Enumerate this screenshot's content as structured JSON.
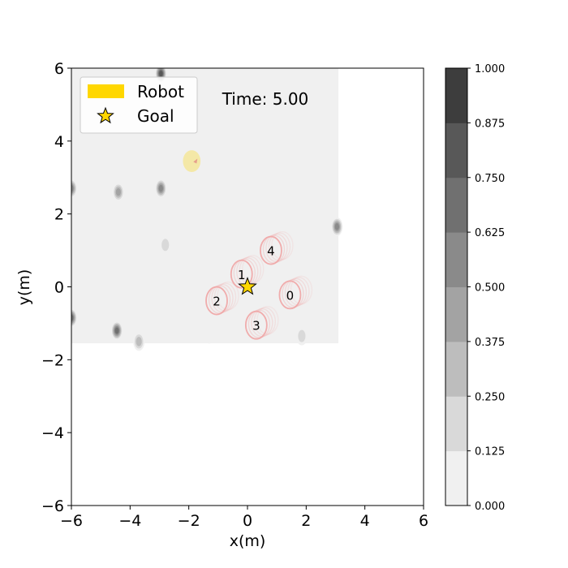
{
  "chart_data": {
    "type": "heatmap",
    "title": "",
    "annotation": "Time: 5.00",
    "xlabel": "x(m)",
    "ylabel": "y(m)",
    "xlim": [
      -6,
      6
    ],
    "ylim": [
      -6,
      6
    ],
    "xticks": [
      "−6",
      "−4",
      "−2",
      "0",
      "2",
      "4",
      "6"
    ],
    "yticks": [
      "−6",
      "−4",
      "−2",
      "0",
      "2",
      "4",
      "6"
    ],
    "grid": false,
    "legend": {
      "placement": "top-left",
      "entries": [
        {
          "label": "Robot",
          "marker": "patch",
          "color": "#ffd700"
        },
        {
          "label": "Goal",
          "marker": "star",
          "color": "#ffd700"
        }
      ]
    },
    "map_extent": {
      "x": [
        -6,
        3.1
      ],
      "y": [
        -1.55,
        6
      ]
    },
    "robot": {
      "x": -1.9,
      "y": 3.45,
      "radius_x": 0.3,
      "radius_y": 0.3
    },
    "goal": {
      "x": 0,
      "y": 0
    },
    "agents": [
      {
        "label": "0",
        "x": 1.45,
        "y": -0.22
      },
      {
        "label": "1",
        "x": -0.2,
        "y": 0.35
      },
      {
        "label": "2",
        "x": -1.05,
        "y": -0.38
      },
      {
        "label": "3",
        "x": 0.3,
        "y": -1.05
      },
      {
        "label": "4",
        "x": 0.8,
        "y": 1.0
      }
    ],
    "obstacles": [
      {
        "x": -2.95,
        "y": 5.85,
        "level": 0.875
      },
      {
        "x": -2.95,
        "y": 2.7,
        "level": 0.625
      },
      {
        "x": -4.4,
        "y": 2.6,
        "level": 0.5
      },
      {
        "x": -6.0,
        "y": 2.7,
        "level": 0.625
      },
      {
        "x": -2.8,
        "y": 1.15,
        "level": 0.25
      },
      {
        "x": 3.05,
        "y": 1.65,
        "level": 0.625
      },
      {
        "x": -6.0,
        "y": -0.85,
        "level": 0.75
      },
      {
        "x": -4.45,
        "y": -1.2,
        "level": 0.75
      },
      {
        "x": -3.7,
        "y": -1.5,
        "level": 0.375
      },
      {
        "x": 1.85,
        "y": -1.35,
        "level": 0.25
      },
      {
        "x": -1.3,
        "y": -1.3,
        "level": 0.125
      }
    ],
    "colorbar": {
      "min": 0,
      "max": 1,
      "levels": [
        {
          "from": 0.0,
          "to": 0.125,
          "color": "#f0f0f0"
        },
        {
          "from": 0.125,
          "to": 0.25,
          "color": "#d9d9d9"
        },
        {
          "from": 0.25,
          "to": 0.375,
          "color": "#bdbdbd"
        },
        {
          "from": 0.375,
          "to": 0.5,
          "color": "#a3a3a3"
        },
        {
          "from": 0.5,
          "to": 0.625,
          "color": "#8a8a8a"
        },
        {
          "from": 0.625,
          "to": 0.75,
          "color": "#707070"
        },
        {
          "from": 0.75,
          "to": 0.875,
          "color": "#585858"
        },
        {
          "from": 0.875,
          "to": 1.0,
          "color": "#3d3d3d"
        }
      ],
      "ticks": [
        "0.000",
        "0.125",
        "0.250",
        "0.375",
        "0.500",
        "0.625",
        "0.750",
        "0.875",
        "1.000"
      ]
    }
  }
}
